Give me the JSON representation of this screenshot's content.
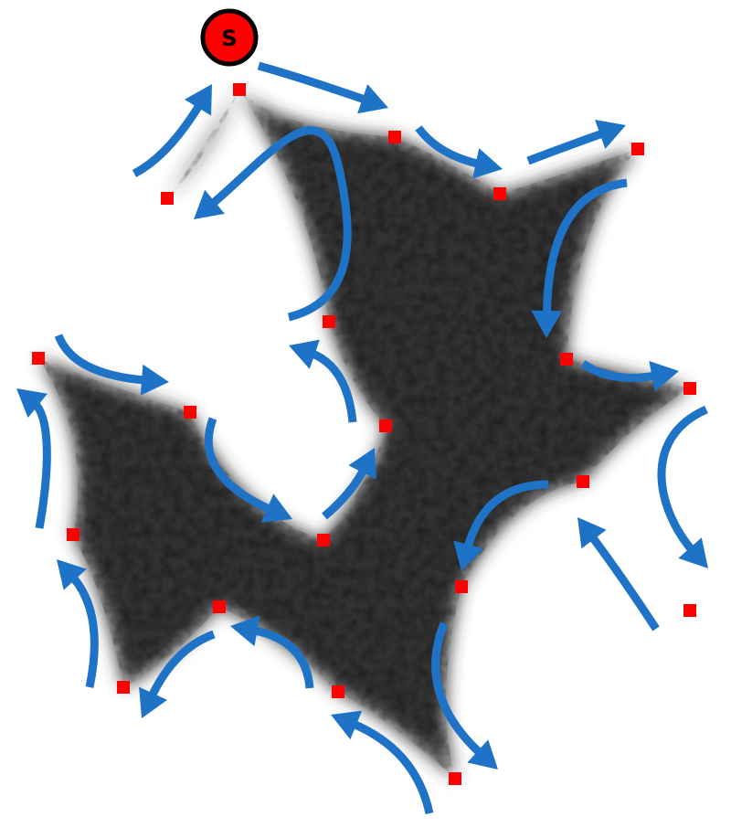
{
  "start_label": "S",
  "colors": {
    "background": "#ffffff",
    "arrow": "#1f73c6",
    "vertex": "#ff0000",
    "start_fill": "#ff0000",
    "start_stroke": "#000000",
    "blob": "#303030"
  },
  "icons": {
    "start": "start-node-icon",
    "vertex": "vertex-marker-icon",
    "arrow": "curved-arrow-icon"
  }
}
